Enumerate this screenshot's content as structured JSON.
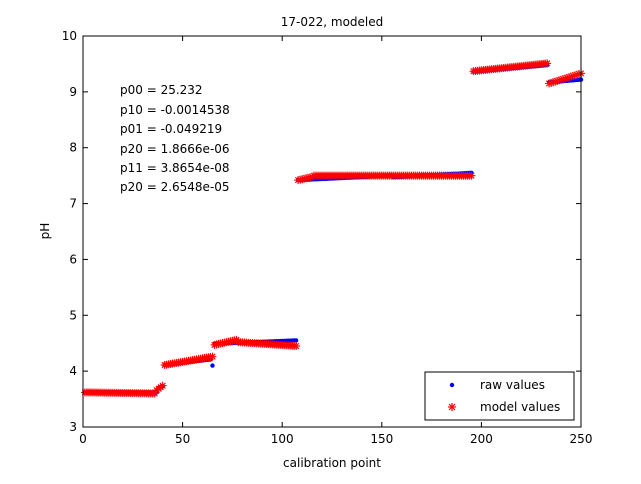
{
  "chart_data": {
    "type": "scatter",
    "title": "17-022, modeled",
    "xlabel": "calibration point",
    "ylabel": "pH",
    "xlim": [
      0,
      250
    ],
    "ylim": [
      3,
      10
    ],
    "xticks": [
      0,
      50,
      100,
      150,
      200,
      250
    ],
    "yticks": [
      3,
      4,
      5,
      6,
      7,
      8,
      9,
      10
    ],
    "grid": false,
    "legend_position": "bottom-right",
    "annotations": [
      "p00 = 25.232",
      "p10 = -0.0014538",
      "p01 = -0.049219",
      "p20 = 1.8666e-06",
      "p11 = 3.8654e-08",
      "p20 = 2.6548e-05"
    ],
    "series": [
      {
        "name": "raw values",
        "marker": "dot",
        "color": "#0000ff",
        "segments": [
          {
            "x_start": 1,
            "x_end": 37,
            "y_start": 3.62,
            "y_end": 3.62
          },
          {
            "x_start": 38,
            "x_end": 40,
            "y_start": 3.7,
            "y_end": 3.73
          },
          {
            "x_start": 41,
            "x_end": 64,
            "y_start": 4.11,
            "y_end": 4.21
          },
          {
            "x_start": 65,
            "x_end": 65,
            "y_start": 4.1,
            "y_end": 4.1
          },
          {
            "x_start": 66,
            "x_end": 107,
            "y_start": 4.49,
            "y_end": 4.55
          },
          {
            "x_start": 108,
            "x_end": 155,
            "y_start": 7.42,
            "y_end": 7.5
          },
          {
            "x_start": 156,
            "x_end": 195,
            "y_start": 7.47,
            "y_end": 7.55
          },
          {
            "x_start": 196,
            "x_end": 233,
            "y_start": 9.36,
            "y_end": 9.48
          },
          {
            "x_start": 234,
            "x_end": 250,
            "y_start": 9.17,
            "y_end": 9.22
          }
        ]
      },
      {
        "name": "model values",
        "marker": "asterisk",
        "color": "#ff0000",
        "segments": [
          {
            "x_start": 1,
            "x_end": 36,
            "y_start": 3.62,
            "y_end": 3.6
          },
          {
            "x_start": 37,
            "x_end": 40,
            "y_start": 3.66,
            "y_end": 3.74
          },
          {
            "x_start": 41,
            "x_end": 65,
            "y_start": 4.11,
            "y_end": 4.26
          },
          {
            "x_start": 66,
            "x_end": 77,
            "y_start": 4.47,
            "y_end": 4.56
          },
          {
            "x_start": 78,
            "x_end": 107,
            "y_start": 4.52,
            "y_end": 4.45
          },
          {
            "x_start": 108,
            "x_end": 115,
            "y_start": 7.42,
            "y_end": 7.48
          },
          {
            "x_start": 116,
            "x_end": 195,
            "y_start": 7.5,
            "y_end": 7.5
          },
          {
            "x_start": 196,
            "x_end": 233,
            "y_start": 9.37,
            "y_end": 9.51
          },
          {
            "x_start": 234,
            "x_end": 250,
            "y_start": 9.15,
            "y_end": 9.33
          }
        ]
      }
    ]
  }
}
